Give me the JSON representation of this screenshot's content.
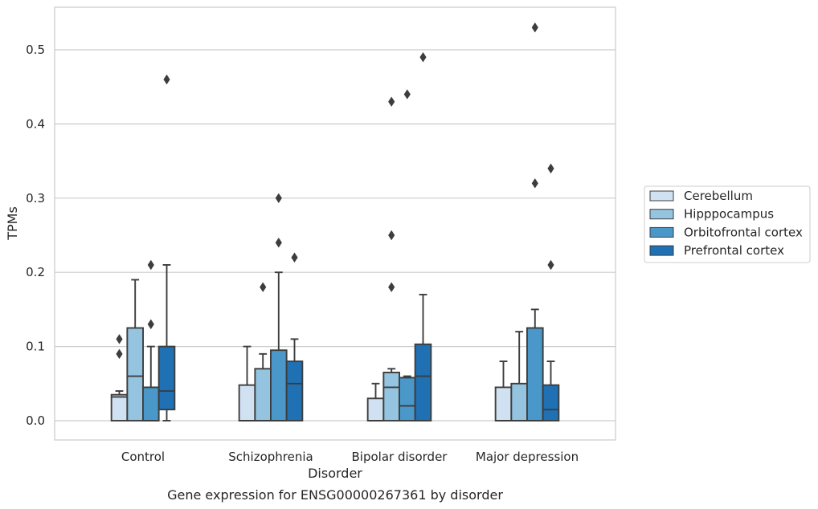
{
  "chart_data": {
    "type": "box",
    "caption": "Gene expression for ENSG00000267361 by disorder",
    "xlabel": "Disorder",
    "ylabel": "TPMs",
    "ylim": [
      -0.025,
      0.557
    ],
    "yticks": [
      "0.0",
      "0.1",
      "0.2",
      "0.3",
      "0.4",
      "0.5"
    ],
    "grid": true,
    "legend_position": "right",
    "categories": [
      "Control",
      "Schizophrenia",
      "Bipolar disorder",
      "Major depression"
    ],
    "series": [
      {
        "name": "Cerebellum",
        "color": "#d0e1f2",
        "boxes": [
          {
            "q1": 0.0,
            "median": 0.032,
            "q3": 0.035,
            "whisker_low": 0.0,
            "whisker_high": 0.04,
            "outliers": [
              0.09,
              0.11
            ]
          },
          {
            "q1": 0.0,
            "median": 0.0,
            "q3": 0.048,
            "whisker_low": 0.0,
            "whisker_high": 0.1,
            "outliers": []
          },
          {
            "q1": 0.0,
            "median": 0.0,
            "q3": 0.03,
            "whisker_low": 0.0,
            "whisker_high": 0.05,
            "outliers": []
          },
          {
            "q1": 0.0,
            "median": 0.0,
            "q3": 0.045,
            "whisker_low": 0.0,
            "whisker_high": 0.08,
            "outliers": []
          }
        ]
      },
      {
        "name": "Hipppocampus",
        "color": "#94c4df",
        "boxes": [
          {
            "q1": 0.0,
            "median": 0.06,
            "q3": 0.125,
            "whisker_low": 0.0,
            "whisker_high": 0.19,
            "outliers": []
          },
          {
            "q1": 0.0,
            "median": 0.0,
            "q3": 0.07,
            "whisker_low": 0.0,
            "whisker_high": 0.09,
            "outliers": [
              0.18
            ]
          },
          {
            "q1": 0.0,
            "median": 0.045,
            "q3": 0.065,
            "whisker_low": 0.0,
            "whisker_high": 0.07,
            "outliers": [
              0.18,
              0.25,
              0.43
            ]
          },
          {
            "q1": 0.0,
            "median": 0.0,
            "q3": 0.05,
            "whisker_low": 0.0,
            "whisker_high": 0.12,
            "outliers": []
          }
        ]
      },
      {
        "name": "Orbitofrontal cortex",
        "color": "#4a98c9",
        "boxes": [
          {
            "q1": 0.0,
            "median": 0.0,
            "q3": 0.045,
            "whisker_low": 0.0,
            "whisker_high": 0.1,
            "outliers": [
              0.13,
              0.21
            ]
          },
          {
            "q1": 0.0,
            "median": 0.0,
            "q3": 0.095,
            "whisker_low": 0.0,
            "whisker_high": 0.2,
            "outliers": [
              0.24,
              0.3
            ]
          },
          {
            "q1": 0.0,
            "median": 0.02,
            "q3": 0.058,
            "whisker_low": 0.0,
            "whisker_high": 0.06,
            "outliers": [
              0.44
            ]
          },
          {
            "q1": 0.0,
            "median": 0.0,
            "q3": 0.125,
            "whisker_low": 0.0,
            "whisker_high": 0.15,
            "outliers": [
              0.32,
              0.53
            ]
          }
        ]
      },
      {
        "name": "Prefrontal cortex",
        "color": "#2070b4",
        "boxes": [
          {
            "q1": 0.015,
            "median": 0.04,
            "q3": 0.1,
            "whisker_low": 0.0,
            "whisker_high": 0.21,
            "outliers": [
              0.46
            ]
          },
          {
            "q1": 0.0,
            "median": 0.05,
            "q3": 0.08,
            "whisker_low": 0.0,
            "whisker_high": 0.11,
            "outliers": [
              0.22
            ]
          },
          {
            "q1": 0.0,
            "median": 0.06,
            "q3": 0.103,
            "whisker_low": 0.0,
            "whisker_high": 0.17,
            "outliers": [
              0.49
            ]
          },
          {
            "q1": 0.0,
            "median": 0.015,
            "q3": 0.048,
            "whisker_low": 0.0,
            "whisker_high": 0.08,
            "outliers": [
              0.21,
              0.34
            ]
          }
        ]
      }
    ]
  }
}
